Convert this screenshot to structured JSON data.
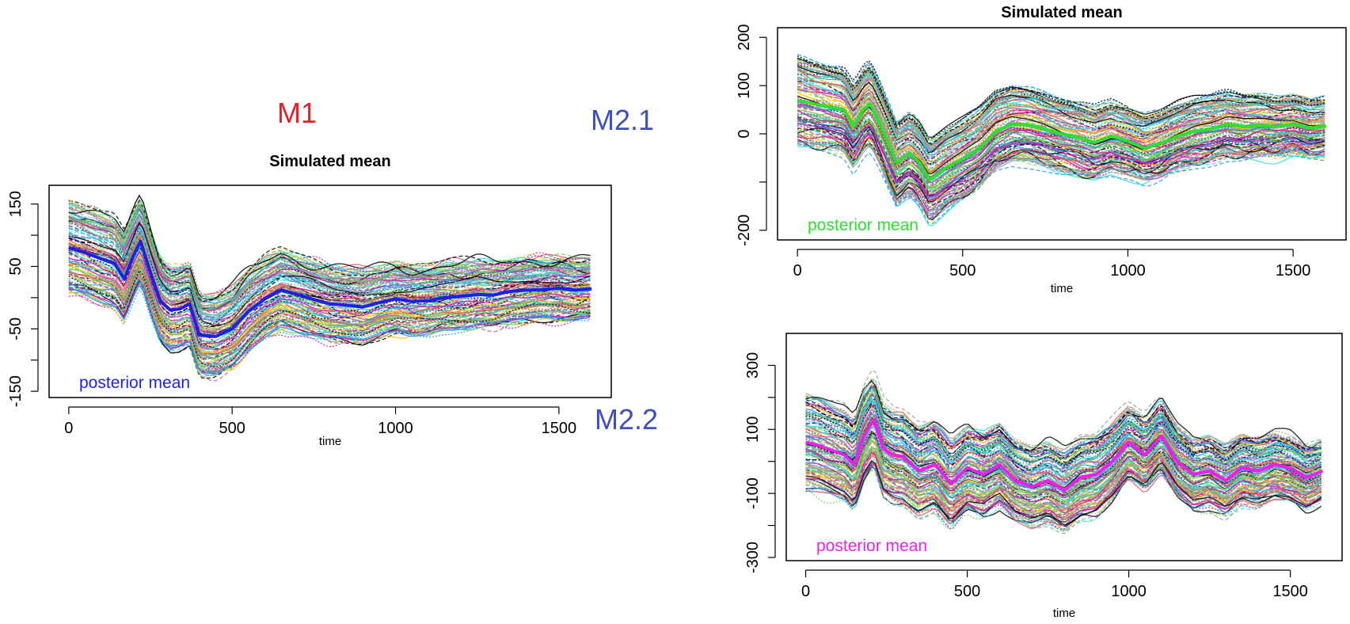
{
  "labels": {
    "m1": "M1",
    "m21": "M2.1",
    "m22": "M2.2"
  },
  "colors": {
    "m1_label": "#e8202a",
    "m2_label": "#3d4fc4",
    "blue": "#1e1ef0",
    "green": "#2ee02e",
    "magenta": "#f01ef0",
    "frame": "#000000"
  },
  "chart_data": [
    {
      "type": "line",
      "panel": "M1",
      "title": "Simulated mean",
      "xlabel": "time",
      "ylabel": "",
      "xlim": [
        0,
        1600
      ],
      "ylim": [
        -160,
        180
      ],
      "xticks": [
        0,
        500,
        1000,
        1500
      ],
      "yticks": [
        -150,
        -50,
        50,
        150
      ],
      "annotation": "posterior mean",
      "annotation_color": "#1e1ef0",
      "series": [
        {
          "name": "posterior mean",
          "color": "#1e1ef0",
          "x": [
            0,
            50,
            100,
            140,
            170,
            200,
            220,
            250,
            280,
            310,
            340,
            370,
            400,
            450,
            500,
            550,
            600,
            650,
            700,
            750,
            800,
            850,
            900,
            950,
            1000,
            1050,
            1100,
            1150,
            1200,
            1250,
            1300,
            1350,
            1400,
            1450,
            1500,
            1550,
            1600
          ],
          "y": [
            80,
            72,
            62,
            55,
            30,
            70,
            90,
            40,
            -5,
            -20,
            -18,
            -10,
            -60,
            -62,
            -50,
            -22,
            -2,
            12,
            5,
            -3,
            -10,
            -12,
            -15,
            -8,
            -2,
            -6,
            -5,
            0,
            2,
            5,
            4,
            10,
            12,
            13,
            15,
            12,
            14
          ]
        }
      ]
    },
    {
      "type": "line",
      "panel": "M2.1",
      "title": "Simulated mean",
      "xlabel": "time",
      "ylabel": "",
      "xlim": [
        0,
        1600
      ],
      "ylim": [
        -220,
        220
      ],
      "xticks": [
        0,
        500,
        1000,
        1500
      ],
      "yticks": [
        -200,
        0,
        100,
        200
      ],
      "annotation": "posterior mean",
      "annotation_color": "#2ee02e",
      "series": [
        {
          "name": "posterior mean",
          "color": "#2ee02e",
          "x": [
            0,
            50,
            100,
            140,
            170,
            200,
            220,
            250,
            300,
            340,
            370,
            400,
            450,
            500,
            550,
            600,
            650,
            700,
            750,
            800,
            850,
            900,
            950,
            1000,
            1050,
            1100,
            1150,
            1200,
            1250,
            1300,
            1350,
            1400,
            1450,
            1500,
            1550,
            1600
          ],
          "y": [
            70,
            62,
            55,
            50,
            15,
            50,
            62,
            20,
            -60,
            -40,
            -60,
            -95,
            -70,
            -52,
            -30,
            5,
            20,
            18,
            10,
            0,
            -8,
            -18,
            -5,
            -15,
            -30,
            -20,
            -5,
            5,
            10,
            20,
            15,
            18,
            15,
            20,
            12,
            16
          ]
        }
      ]
    },
    {
      "type": "line",
      "panel": "M2.2",
      "title": "",
      "xlabel": "time",
      "ylabel": "",
      "xlim": [
        0,
        1600
      ],
      "ylim": [
        -310,
        400
      ],
      "xticks": [
        0,
        500,
        1000,
        1500
      ],
      "yticks": [
        -300,
        -100,
        100,
        300
      ],
      "annotation": "posterior mean",
      "annotation_color": "#f01ef0",
      "series": [
        {
          "name": "posterior mean",
          "color": "#f01ef0",
          "x": [
            0,
            40,
            80,
            120,
            150,
            180,
            210,
            240,
            270,
            300,
            350,
            400,
            450,
            500,
            550,
            600,
            650,
            700,
            750,
            800,
            850,
            900,
            950,
            1000,
            1050,
            1100,
            1150,
            1200,
            1250,
            1300,
            1350,
            1400,
            1450,
            1500,
            1550,
            1600
          ],
          "y": [
            60,
            50,
            35,
            20,
            -10,
            80,
            130,
            40,
            20,
            15,
            -30,
            -10,
            -70,
            -20,
            -40,
            -10,
            -60,
            -80,
            -60,
            -90,
            -50,
            -40,
            0,
            60,
            20,
            80,
            0,
            -40,
            -30,
            -60,
            -20,
            -30,
            -10,
            -20,
            -50,
            -30
          ]
        }
      ]
    }
  ]
}
